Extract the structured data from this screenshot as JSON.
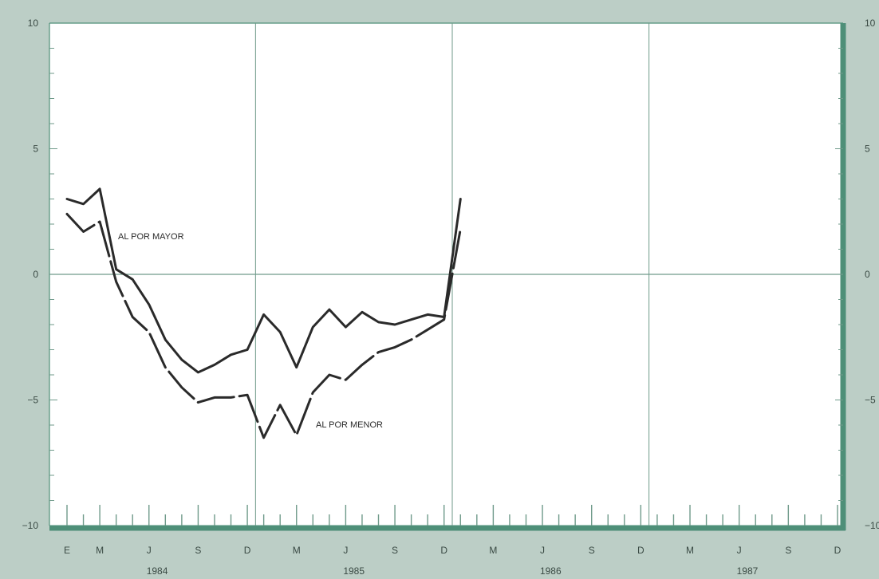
{
  "colors": {
    "background": "#bccec6",
    "plot_area": "#ffffff",
    "frame": "#4e8f78",
    "grid": "#6f9a8a",
    "tick_marks": "#6f9a8a",
    "line": "#2a2a2a",
    "text": "#3a4a44"
  },
  "chart_data": {
    "type": "line",
    "title": "",
    "xlabel": "",
    "ylabel": "",
    "ylim": [
      -10,
      10
    ],
    "y_ticks": [
      "10",
      "5",
      "0",
      "−5",
      "−10"
    ],
    "y_tick_values": [
      10,
      5,
      0,
      -5,
      -10
    ],
    "y_minor_step": 1,
    "x_months_total": 48,
    "x_tick_labels": [
      "E",
      "M",
      "J",
      "S",
      "D",
      "M",
      "J",
      "S",
      "D",
      "M",
      "J",
      "S",
      "D",
      "M",
      "J",
      "S",
      "D"
    ],
    "x_tick_months": [
      0,
      2,
      5,
      8,
      11,
      14,
      17,
      20,
      23,
      26,
      29,
      32,
      35,
      38,
      41,
      44,
      47
    ],
    "years": [
      "1984",
      "1985",
      "1986",
      "1987"
    ],
    "vertical_grid_months": [
      11.5,
      23.5,
      35.5
    ],
    "grid": true,
    "series": [
      {
        "name": "AL POR MAYOR",
        "style": "solid",
        "x": [
          0,
          1,
          2,
          3,
          4,
          5,
          6,
          7,
          8,
          9,
          10,
          11,
          12,
          13,
          14,
          15,
          16,
          17,
          18,
          19,
          20,
          21,
          22,
          23,
          24
        ],
        "y": [
          3.0,
          2.8,
          3.4,
          0.2,
          -0.2,
          -1.2,
          -2.6,
          -3.4,
          -3.9,
          -3.6,
          -3.2,
          -3.0,
          -1.6,
          -2.3,
          -3.7,
          -2.1,
          -1.4,
          -2.1,
          -1.5,
          -1.9,
          -2.0,
          -1.8,
          -1.6,
          -1.7,
          3.0
        ]
      },
      {
        "name": "AL POR MENOR",
        "style": "broken",
        "x": [
          0,
          1,
          2,
          3,
          4,
          5,
          6,
          7,
          8,
          9,
          10,
          11,
          12,
          13,
          14,
          15,
          16,
          17,
          18,
          19,
          20,
          21,
          22,
          23,
          24
        ],
        "y": [
          2.4,
          1.7,
          2.1,
          -0.3,
          -1.7,
          -2.3,
          -3.7,
          -4.5,
          -5.1,
          -4.9,
          -4.9,
          -4.8,
          -6.5,
          -5.2,
          -6.4,
          -4.7,
          -4.0,
          -4.2,
          -3.6,
          -3.1,
          -2.9,
          -2.6,
          -2.2,
          -1.8,
          1.8
        ]
      }
    ]
  }
}
